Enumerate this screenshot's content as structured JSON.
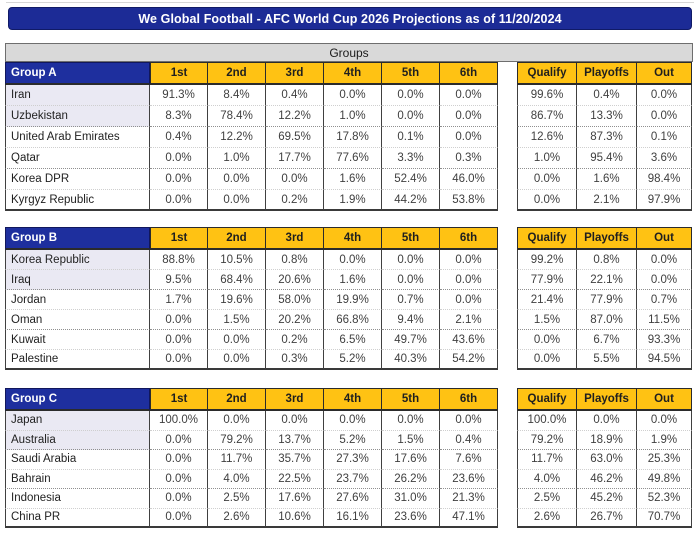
{
  "title": "We Global Football - AFC World Cup 2026 Projections as of 11/20/2024",
  "groups_label": "Groups",
  "colors": {
    "title_bar_bg": "#1c2b96",
    "group_header_bg": "#1e2f9e",
    "column_header_bg": "#ffc213",
    "groups_bar_bg": "#d9d9d9",
    "qualify_zone_row_bg": "#eae9f3"
  },
  "chart_data": {
    "type": "table",
    "title": "We Global Football - AFC World Cup 2026 Projections as of 11/20/2024",
    "section_title": "Groups",
    "position_columns": [
      "1st",
      "2nd",
      "3rd",
      "4th",
      "5th",
      "6th"
    ],
    "outcome_columns": [
      "Qualify",
      "Playoffs",
      "Out"
    ],
    "groups": [
      {
        "name": "Group A",
        "teams": [
          {
            "name": "Iran",
            "positions": [
              "91.3%",
              "8.4%",
              "0.4%",
              "0.0%",
              "0.0%",
              "0.0%"
            ],
            "outcomes": [
              "99.6%",
              "0.4%",
              "0.0%"
            ]
          },
          {
            "name": "Uzbekistan",
            "positions": [
              "8.3%",
              "78.4%",
              "12.2%",
              "1.0%",
              "0.0%",
              "0.0%"
            ],
            "outcomes": [
              "86.7%",
              "13.3%",
              "0.0%"
            ]
          },
          {
            "name": "United Arab Emirates",
            "positions": [
              "0.4%",
              "12.2%",
              "69.5%",
              "17.8%",
              "0.1%",
              "0.0%"
            ],
            "outcomes": [
              "12.6%",
              "87.3%",
              "0.1%"
            ]
          },
          {
            "name": "Qatar",
            "positions": [
              "0.0%",
              "1.0%",
              "17.7%",
              "77.6%",
              "3.3%",
              "0.3%"
            ],
            "outcomes": [
              "1.0%",
              "95.4%",
              "3.6%"
            ]
          },
          {
            "name": "Korea DPR",
            "positions": [
              "0.0%",
              "0.0%",
              "0.0%",
              "1.6%",
              "52.4%",
              "46.0%"
            ],
            "outcomes": [
              "0.0%",
              "1.6%",
              "98.4%"
            ]
          },
          {
            "name": "Kyrgyz Republic",
            "positions": [
              "0.0%",
              "0.0%",
              "0.2%",
              "1.9%",
              "44.2%",
              "53.8%"
            ],
            "outcomes": [
              "0.0%",
              "2.1%",
              "97.9%"
            ]
          }
        ]
      },
      {
        "name": "Group B",
        "teams": [
          {
            "name": "Korea Republic",
            "positions": [
              "88.8%",
              "10.5%",
              "0.8%",
              "0.0%",
              "0.0%",
              "0.0%"
            ],
            "outcomes": [
              "99.2%",
              "0.8%",
              "0.0%"
            ]
          },
          {
            "name": "Iraq",
            "positions": [
              "9.5%",
              "68.4%",
              "20.6%",
              "1.6%",
              "0.0%",
              "0.0%"
            ],
            "outcomes": [
              "77.9%",
              "22.1%",
              "0.0%"
            ]
          },
          {
            "name": "Jordan",
            "positions": [
              "1.7%",
              "19.6%",
              "58.0%",
              "19.9%",
              "0.7%",
              "0.0%"
            ],
            "outcomes": [
              "21.4%",
              "77.9%",
              "0.7%"
            ]
          },
          {
            "name": "Oman",
            "positions": [
              "0.0%",
              "1.5%",
              "20.2%",
              "66.8%",
              "9.4%",
              "2.1%"
            ],
            "outcomes": [
              "1.5%",
              "87.0%",
              "11.5%"
            ]
          },
          {
            "name": "Kuwait",
            "positions": [
              "0.0%",
              "0.0%",
              "0.2%",
              "6.5%",
              "49.7%",
              "43.6%"
            ],
            "outcomes": [
              "0.0%",
              "6.7%",
              "93.3%"
            ]
          },
          {
            "name": "Palestine",
            "positions": [
              "0.0%",
              "0.0%",
              "0.3%",
              "5.2%",
              "40.3%",
              "54.2%"
            ],
            "outcomes": [
              "0.0%",
              "5.5%",
              "94.5%"
            ]
          }
        ]
      },
      {
        "name": "Group C",
        "teams": [
          {
            "name": "Japan",
            "positions": [
              "100.0%",
              "0.0%",
              "0.0%",
              "0.0%",
              "0.0%",
              "0.0%"
            ],
            "outcomes": [
              "100.0%",
              "0.0%",
              "0.0%"
            ]
          },
          {
            "name": "Australia",
            "positions": [
              "0.0%",
              "79.2%",
              "13.7%",
              "5.2%",
              "1.5%",
              "0.4%"
            ],
            "outcomes": [
              "79.2%",
              "18.9%",
              "1.9%"
            ]
          },
          {
            "name": "Saudi Arabia",
            "positions": [
              "0.0%",
              "11.7%",
              "35.7%",
              "27.3%",
              "17.6%",
              "7.6%"
            ],
            "outcomes": [
              "11.7%",
              "63.0%",
              "25.3%"
            ]
          },
          {
            "name": "Bahrain",
            "positions": [
              "0.0%",
              "4.0%",
              "22.5%",
              "23.7%",
              "26.2%",
              "23.6%"
            ],
            "outcomes": [
              "4.0%",
              "46.2%",
              "49.8%"
            ]
          },
          {
            "name": "Indonesia",
            "positions": [
              "0.0%",
              "2.5%",
              "17.6%",
              "27.6%",
              "31.0%",
              "21.3%"
            ],
            "outcomes": [
              "2.5%",
              "45.2%",
              "52.3%"
            ]
          },
          {
            "name": "China PR",
            "positions": [
              "0.0%",
              "2.6%",
              "10.6%",
              "16.1%",
              "23.6%",
              "47.1%"
            ],
            "outcomes": [
              "2.6%",
              "26.7%",
              "70.7%"
            ]
          }
        ]
      }
    ]
  }
}
